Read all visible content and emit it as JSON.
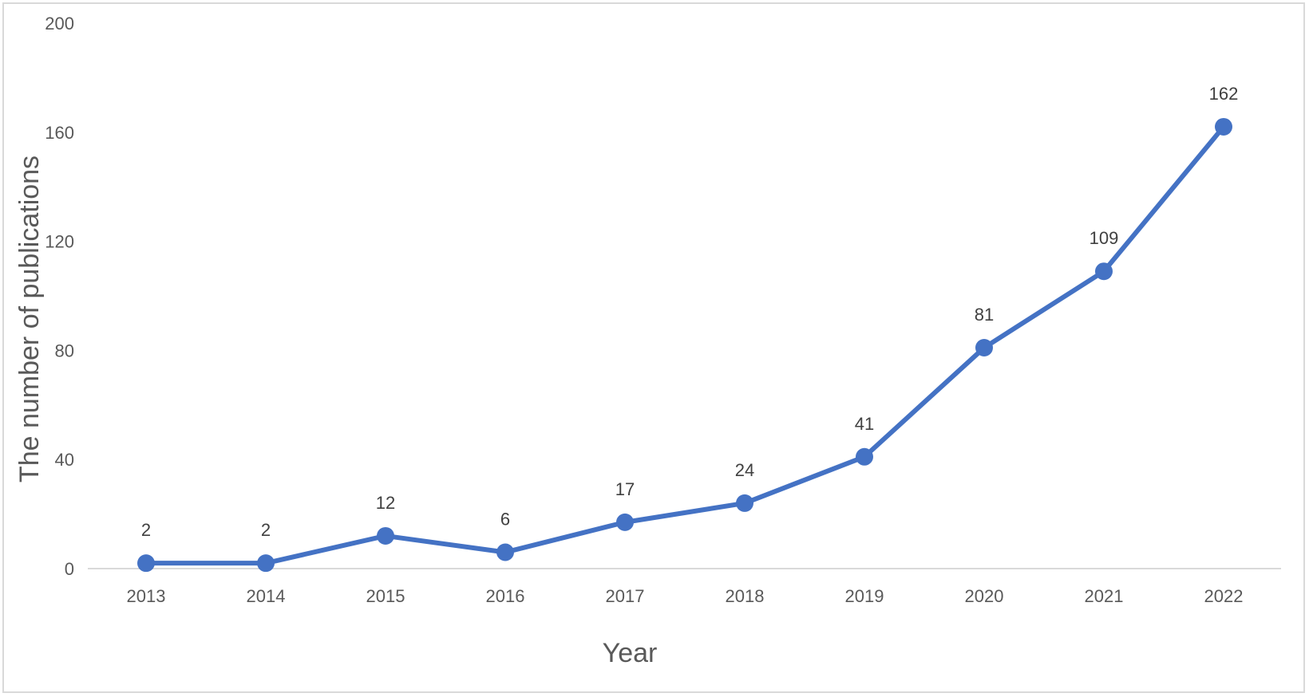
{
  "chart_data": {
    "type": "line",
    "title": "",
    "xlabel": "Year",
    "ylabel": "The number of publications",
    "categories": [
      "2013",
      "2014",
      "2015",
      "2016",
      "2017",
      "2018",
      "2019",
      "2020",
      "2021",
      "2022"
    ],
    "series": [
      {
        "values": [
          2,
          2,
          12,
          6,
          17,
          24,
          41,
          81,
          109,
          162
        ]
      }
    ],
    "ylim": [
      0,
      200
    ],
    "yticks": [
      0,
      40,
      80,
      120,
      160,
      200
    ],
    "data_labels": true,
    "grid": false,
    "legend": "none",
    "colors": {
      "series": "#4472c4",
      "axis": "#d9d9d9",
      "tick_text": "#595959",
      "label_text": "#404040"
    }
  }
}
